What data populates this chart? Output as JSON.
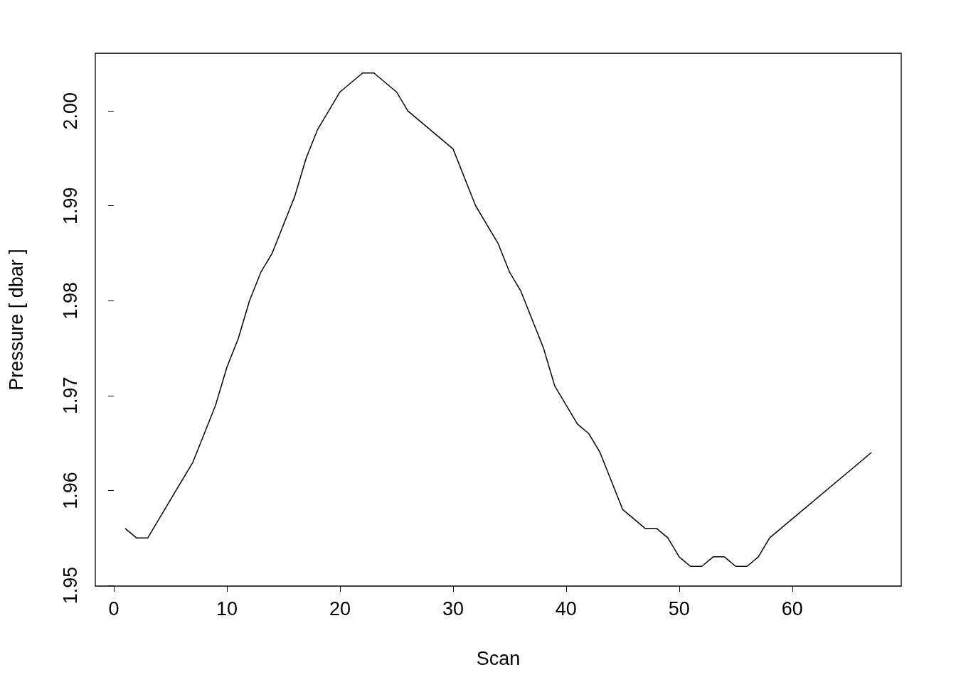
{
  "chart_data": {
    "type": "line",
    "xlabel": "Scan",
    "ylabel": "Pressure [ dbar ]",
    "color": "#000000",
    "marker": "none",
    "grid": false,
    "x": [
      1,
      2,
      3,
      7,
      9,
      10,
      11,
      12,
      13,
      14,
      16,
      17,
      18,
      20,
      22,
      23,
      25,
      26,
      30,
      32,
      34,
      35,
      36,
      38,
      39,
      41,
      42,
      43,
      45,
      47,
      48,
      49,
      50,
      51,
      52,
      53,
      54,
      55,
      56,
      57,
      58,
      67
    ],
    "values": [
      1.956,
      1.955,
      1.955,
      1.963,
      1.969,
      1.973,
      1.976,
      1.98,
      1.983,
      1.985,
      1.991,
      1.995,
      1.998,
      2.002,
      2.004,
      2.004,
      2.002,
      2.0,
      1.996,
      1.99,
      1.986,
      1.983,
      1.981,
      1.975,
      1.971,
      1.967,
      1.966,
      1.964,
      1.958,
      1.956,
      1.956,
      1.955,
      1.953,
      1.952,
      1.952,
      1.953,
      1.953,
      1.952,
      1.952,
      1.953,
      1.955,
      1.964
    ],
    "xlim": [
      -1.64,
      69.64
    ],
    "ylim": [
      1.94992,
      2.00608
    ],
    "xticks": [
      0,
      10,
      20,
      30,
      40,
      50,
      60
    ],
    "yticks": [
      1.95,
      1.96,
      1.97,
      1.98,
      1.99,
      {
        "value": 2,
        "label": "2.00"
      }
    ]
  }
}
